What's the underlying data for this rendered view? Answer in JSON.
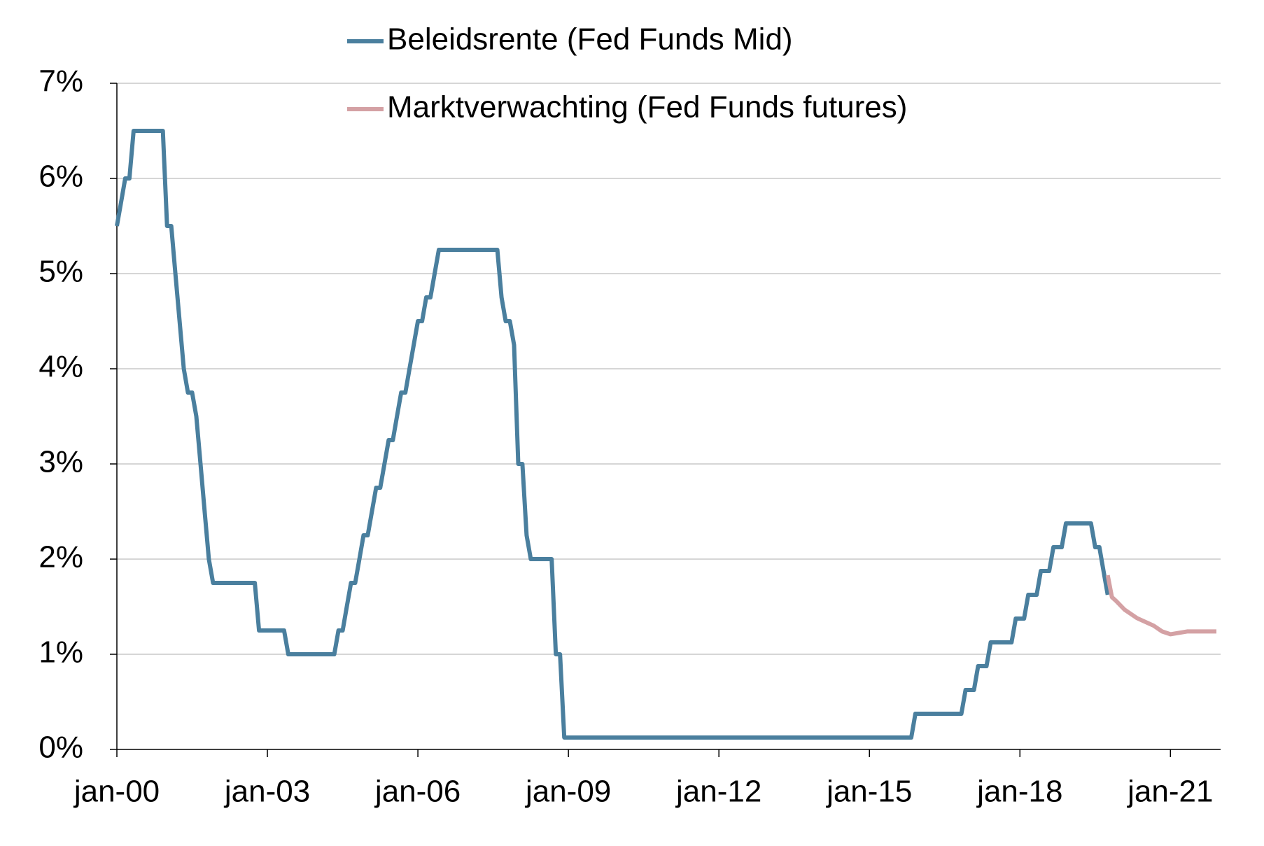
{
  "chart_data": {
    "type": "line",
    "xlim": [
      "2000-01",
      "2022-01"
    ],
    "xticks": [
      {
        "value": "2000-01",
        "label": "jan-00"
      },
      {
        "value": "2003-01",
        "label": "jan-03"
      },
      {
        "value": "2006-01",
        "label": "jan-06"
      },
      {
        "value": "2009-01",
        "label": "jan-09"
      },
      {
        "value": "2012-01",
        "label": "jan-12"
      },
      {
        "value": "2015-01",
        "label": "jan-15"
      },
      {
        "value": "2018-01",
        "label": "jan-18"
      },
      {
        "value": "2021-01",
        "label": "jan-21"
      }
    ],
    "ylim": [
      0,
      7
    ],
    "yticks": [
      {
        "value": 0,
        "label": "0%"
      },
      {
        "value": 1,
        "label": "1%"
      },
      {
        "value": 2,
        "label": "2%"
      },
      {
        "value": 3,
        "label": "3%"
      },
      {
        "value": 4,
        "label": "4%"
      },
      {
        "value": 5,
        "label": "5%"
      },
      {
        "value": 6,
        "label": "6%"
      },
      {
        "value": 7,
        "label": "7%"
      }
    ],
    "grid": true,
    "legend": "top",
    "series": [
      {
        "name": "Beleidsrente (Fed Funds Mid)",
        "color": "#4a7f9e",
        "x": [
          "2000-01",
          "2000-02",
          "2000-03",
          "2000-04",
          "2000-05",
          "2000-12",
          "2001-01",
          "2001-02",
          "2001-03",
          "2001-04",
          "2001-05",
          "2001-06",
          "2001-07",
          "2001-08",
          "2001-09",
          "2001-10",
          "2001-11",
          "2001-12",
          "2002-10",
          "2002-11",
          "2003-05",
          "2003-06",
          "2004-05",
          "2004-06",
          "2004-07",
          "2004-08",
          "2004-09",
          "2004-10",
          "2004-11",
          "2004-12",
          "2005-01",
          "2005-02",
          "2005-03",
          "2005-04",
          "2005-05",
          "2005-06",
          "2005-07",
          "2005-08",
          "2005-09",
          "2005-10",
          "2005-11",
          "2005-12",
          "2006-01",
          "2006-02",
          "2006-03",
          "2006-04",
          "2006-05",
          "2006-06",
          "2007-08",
          "2007-09",
          "2007-10",
          "2007-11",
          "2007-12",
          "2008-01",
          "2008-02",
          "2008-03",
          "2008-04",
          "2008-09",
          "2008-10",
          "2008-11",
          "2008-12",
          "2015-11",
          "2015-12",
          "2016-11",
          "2016-12",
          "2017-02",
          "2017-03",
          "2017-05",
          "2017-06",
          "2017-11",
          "2017-12",
          "2018-02",
          "2018-03",
          "2018-05",
          "2018-06",
          "2018-08",
          "2018-09",
          "2018-11",
          "2018-12",
          "2019-06",
          "2019-07",
          "2019-08",
          "2019-09",
          "2019-10"
        ],
        "values": [
          5.5,
          5.75,
          6.0,
          6.0,
          6.5,
          6.5,
          5.5,
          5.5,
          5.0,
          4.5,
          4.0,
          3.75,
          3.75,
          3.5,
          3.0,
          2.5,
          2.0,
          1.75,
          1.75,
          1.25,
          1.25,
          1.0,
          1.0,
          1.25,
          1.25,
          1.5,
          1.75,
          1.75,
          2.0,
          2.25,
          2.25,
          2.5,
          2.75,
          2.75,
          3.0,
          3.25,
          3.25,
          3.5,
          3.75,
          3.75,
          4.0,
          4.25,
          4.5,
          4.5,
          4.75,
          4.75,
          5.0,
          5.25,
          5.25,
          4.75,
          4.5,
          4.5,
          4.25,
          3.0,
          3.0,
          2.25,
          2.0,
          2.0,
          1.0,
          1.0,
          0.125,
          0.125,
          0.375,
          0.375,
          0.625,
          0.625,
          0.875,
          0.875,
          1.125,
          1.125,
          1.375,
          1.375,
          1.625,
          1.625,
          1.875,
          1.875,
          2.125,
          2.125,
          2.375,
          2.375,
          2.125,
          2.125,
          1.875,
          1.625
        ]
      },
      {
        "name": "Marktverwachting (Fed Funds futures)",
        "color": "#d4a1a4",
        "x": [
          "2019-10",
          "2019-11",
          "2019-12",
          "2020-02",
          "2020-05",
          "2020-09",
          "2020-11",
          "2021-01",
          "2021-05",
          "2021-08",
          "2021-12"
        ],
        "values": [
          1.83,
          1.6,
          1.56,
          1.47,
          1.38,
          1.3,
          1.24,
          1.21,
          1.24,
          1.24,
          1.24
        ]
      }
    ]
  }
}
